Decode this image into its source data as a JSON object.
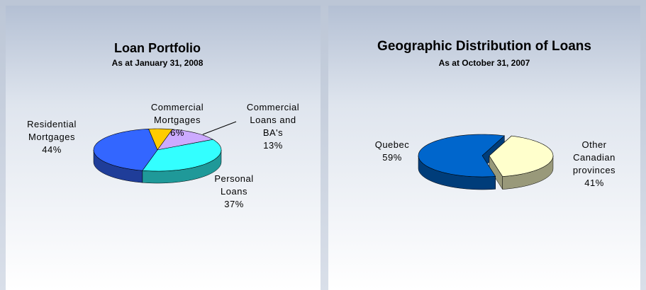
{
  "chart_data": [
    {
      "type": "pie3d",
      "title": "Loan Portfolio",
      "subtitle": "As at January 31, 2008",
      "categories": [
        "Commercial Mortgages",
        "Commercial Loans and BA's",
        "Personal Loans",
        "Residential Mortgages"
      ],
      "values": [
        6,
        13,
        37,
        44
      ],
      "value_labels": [
        "6%",
        "13%",
        "37%",
        "44%"
      ],
      "colors": [
        "#ffcc00",
        "#ccaaff",
        "#33ffff",
        "#3366ff"
      ]
    },
    {
      "type": "pie3d",
      "title": "Geographic Distribution of Loans",
      "subtitle": "As at October 31, 2007",
      "categories": [
        "Quebec",
        "Other Canadian provinces"
      ],
      "values": [
        59,
        41
      ],
      "value_labels": [
        "59%",
        "41%"
      ],
      "colors": [
        "#0066cc",
        "#ffffcc"
      ]
    }
  ]
}
